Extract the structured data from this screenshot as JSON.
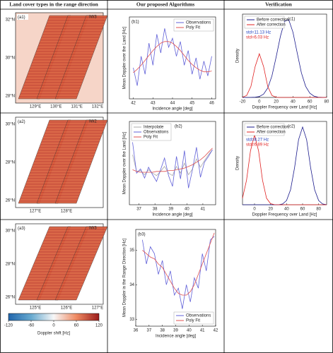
{
  "headers": [
    "Land cover types in the range direction",
    "Our proposed Algorithms",
    "Verification"
  ],
  "maps": [
    {
      "label": "(a1)",
      "swath": "IW3",
      "lat_labels": [
        "32°N",
        "30°N",
        "28°N"
      ],
      "lon_labels": [
        "129°E",
        "130°E",
        "131°E",
        "132°E"
      ]
    },
    {
      "label": "(a2)",
      "swath": "IW2",
      "lat_labels": [
        "30°N",
        "28°N",
        "26°N"
      ],
      "lon_labels": [
        "127°E",
        "128°E"
      ]
    },
    {
      "label": "(a3)",
      "swath": "IW3",
      "lat_labels": [
        "30°N",
        "28°N",
        "26°N"
      ],
      "lon_labels": [
        "125°E",
        "126°E",
        "127°E"
      ]
    }
  ],
  "colorbar": {
    "label": "Doppler shift [Hz]",
    "lim": [
      -120,
      120
    ],
    "ticks": [
      -120,
      -60,
      0,
      60,
      120
    ]
  },
  "chart_data": [
    {
      "type": "line",
      "panel": "(b1)",
      "xlabel": "Incidence angle [deg]",
      "ylabel": "Mean Doppler over the Land [Hz]",
      "xlim": [
        41.8,
        46.2
      ],
      "xticks": [
        42,
        43,
        44,
        45,
        46
      ],
      "ylim": [
        0,
        10
      ],
      "legend": "upper right",
      "x": [
        42,
        42.2,
        42.4,
        42.6,
        42.8,
        43,
        43.2,
        43.4,
        43.6,
        43.8,
        44,
        44.2,
        44.4,
        44.6,
        44.8,
        45,
        45.2,
        45.4,
        45.6,
        45.8,
        46
      ],
      "series": [
        {
          "name": "Observations",
          "color": "#6060d8",
          "values": [
            3.8,
            1.6,
            5.2,
            3.0,
            6.8,
            4.1,
            7.9,
            5.6,
            8.6,
            6.3,
            7.4,
            5.2,
            7.0,
            4.1,
            5.9,
            3.0,
            5.0,
            2.4,
            4.6,
            2.8,
            5.2
          ]
        },
        {
          "name": "Poly Fit",
          "color": "#e05050",
          "values": [
            3.2,
            3.6,
            4.1,
            4.7,
            5.3,
            5.9,
            6.4,
            6.8,
            7.0,
            7.0,
            6.8,
            6.4,
            5.9,
            5.3,
            4.7,
            4.2,
            3.8,
            3.5,
            3.3,
            3.3,
            3.4
          ]
        }
      ]
    },
    {
      "type": "line",
      "panel": "(b2)",
      "xlabel": "Incidence angle [deg]",
      "ylabel": "Mean Doppler over the Land [Hz]",
      "xlim": [
        36.4,
        41.8
      ],
      "xticks": [
        37,
        38,
        39,
        40,
        41
      ],
      "ylim": [
        0,
        10
      ],
      "legend": "upper left",
      "x": [
        36.6,
        36.85,
        37.1,
        37.35,
        37.6,
        37.85,
        38.1,
        38.35,
        38.6,
        38.85,
        39.1,
        39.35,
        39.6,
        39.85,
        40.1,
        40.35,
        40.6,
        40.85,
        41.1,
        41.35,
        41.6
      ],
      "series": [
        {
          "name": "Interpolate",
          "color": "#aaaaaa",
          "values": [
            6.0,
            4.0,
            4.1,
            3.6,
            4.2,
            3.8,
            3.5,
            4.0,
            4.6,
            3.8,
            3.5,
            4.6,
            3.8,
            5.0,
            3.6,
            4.3,
            5.5,
            4.5,
            5.3,
            6.0,
            6.6
          ]
        },
        {
          "name": "Observations",
          "color": "#6060d8",
          "values": [
            7.5,
            3.8,
            4.3,
            3.2,
            4.5,
            3.6,
            2.8,
            4.2,
            5.6,
            3.5,
            2.2,
            5.8,
            3.1,
            6.5,
            2.0,
            4.2,
            6.9,
            3.3,
            5.1,
            5.8,
            6.6
          ]
        },
        {
          "name": "Poly Fit",
          "color": "#e05050",
          "values": [
            4.2,
            4.0,
            3.9,
            3.9,
            3.9,
            3.9,
            4.0,
            4.0,
            4.0,
            4.1,
            4.1,
            4.2,
            4.3,
            4.4,
            4.6,
            4.8,
            5.1,
            5.4,
            5.8,
            6.3,
            6.8
          ]
        }
      ]
    },
    {
      "type": "line",
      "panel": "(b3)",
      "xlabel": "Incidence angle [deg]",
      "ylabel": "Mean Doppler in the Range Direction [Hz]",
      "xlim": [
        36,
        42
      ],
      "xticks": [
        36,
        37,
        38,
        39,
        40,
        41,
        42
      ],
      "ylim": [
        32.8,
        35.6
      ],
      "yticks": [
        33,
        34,
        35
      ],
      "legend": "lower right",
      "x": [
        36.5,
        36.8,
        37.1,
        37.4,
        37.7,
        38,
        38.3,
        38.6,
        38.9,
        39.2,
        39.5,
        39.8,
        40.1,
        40.4,
        40.7,
        41,
        41.3,
        41.6,
        41.9
      ],
      "series": [
        {
          "name": "Observations",
          "color": "#6060d8",
          "values": [
            35.3,
            34.6,
            35.1,
            34.9,
            34.3,
            34.7,
            34.0,
            34.4,
            33.7,
            33.9,
            33.3,
            34.0,
            33.5,
            34.2,
            33.9,
            34.9,
            34.4,
            35.3,
            35.4
          ]
        },
        {
          "name": "Poly Fit",
          "color": "#e05050",
          "values": [
            35.0,
            34.9,
            34.8,
            34.75,
            34.6,
            34.5,
            34.3,
            34.1,
            33.9,
            33.75,
            33.7,
            33.7,
            33.8,
            34.0,
            34.3,
            34.6,
            34.9,
            35.2,
            35.5
          ]
        }
      ]
    },
    {
      "type": "line",
      "panel": "(c1)",
      "xlabel": "Doppler Frequency over Land [Hz]",
      "ylabel": "Density",
      "xlim": [
        -20,
        80
      ],
      "xticks": [
        -20,
        0,
        20,
        40,
        60,
        80
      ],
      "ylim": [
        0,
        1.05
      ],
      "legend": "upper left",
      "annotations": [
        {
          "text": "std=11.13 Hz",
          "color": "#1f3fbf"
        },
        {
          "text": "std=6.03 Hz",
          "color": "#e02020"
        }
      ],
      "x": [
        -20,
        -15,
        -10,
        -5,
        0,
        5,
        10,
        15,
        20,
        25,
        30,
        35,
        40,
        45,
        50,
        55,
        60,
        65,
        70,
        75,
        80
      ],
      "series": [
        {
          "name": "Before correction",
          "color": "#1a1a8c",
          "values": [
            0,
            0,
            0.0006,
            0.003,
            0.012,
            0.042,
            0.118,
            0.27,
            0.51,
            0.77,
            0.96,
            0.98,
            0.82,
            0.56,
            0.31,
            0.14,
            0.053,
            0.016,
            0.004,
            0.001,
            0
          ]
        },
        {
          "name": "After correction",
          "color": "#e02020",
          "values": [
            0.002,
            0.025,
            0.139,
            0.39,
            0.55,
            0.39,
            0.139,
            0.025,
            0.002,
            0,
            0,
            0,
            0,
            0,
            0,
            0,
            0,
            0,
            0,
            0,
            0
          ]
        }
      ]
    },
    {
      "type": "line",
      "panel": "(c2)",
      "xlabel": "Doppler Frequency over Land [Hz]",
      "ylabel": "Density",
      "xlim": [
        -15,
        90
      ],
      "xticks": [
        0,
        20,
        40,
        60,
        80
      ],
      "ylim": [
        0,
        1.05
      ],
      "legend": "upper left",
      "annotations": [
        {
          "text": "std=8.27 Hz",
          "color": "#1f3fbf"
        },
        {
          "text": "std=6.89 Hz",
          "color": "#e02020"
        }
      ],
      "x": [
        -15,
        -10,
        -5,
        0,
        5,
        10,
        15,
        20,
        25,
        30,
        35,
        40,
        45,
        50,
        55,
        60,
        65,
        70,
        75,
        80,
        85,
        90
      ],
      "series": [
        {
          "name": "Before correction",
          "color": "#1a1a8c",
          "values": [
            0,
            0,
            0,
            0,
            0,
            0,
            0,
            0,
            0,
            0,
            0.01,
            0.053,
            0.19,
            0.47,
            0.82,
            0.98,
            0.82,
            0.47,
            0.19,
            0.053,
            0.01,
            0.001
          ]
        },
        {
          "name": "After correction",
          "color": "#e02020",
          "values": [
            0.082,
            0.31,
            0.68,
            0.88,
            0.68,
            0.31,
            0.082,
            0.013,
            0.001,
            0,
            0,
            0,
            0,
            0,
            0,
            0,
            0,
            0,
            0,
            0,
            0,
            0
          ]
        }
      ]
    }
  ]
}
